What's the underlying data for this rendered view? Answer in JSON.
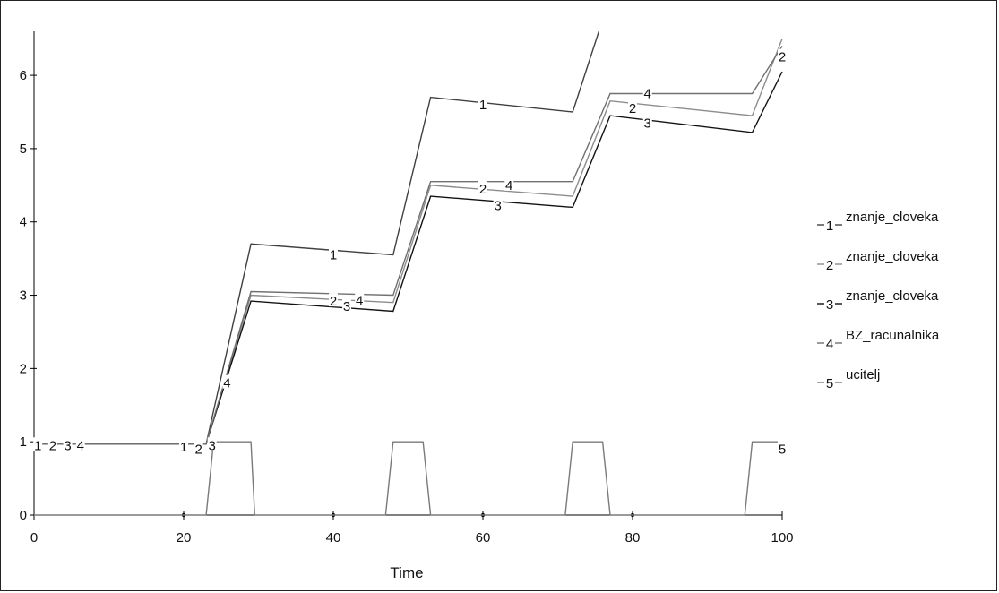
{
  "chart_data": {
    "type": "line",
    "xlabel": "Time",
    "ylabel": "",
    "xlim": [
      0,
      100
    ],
    "ylim": [
      0,
      6.6
    ],
    "x_ticks": [
      "0",
      "20",
      "40",
      "60",
      "80",
      "100"
    ],
    "y_ticks": [
      "0",
      "1",
      "2",
      "3",
      "4",
      "5",
      "6"
    ],
    "series": [
      {
        "name": "znanje_cloveka",
        "marker": "1",
        "color": "#404040",
        "points": [
          [
            0,
            0.97
          ],
          [
            23,
            0.97
          ],
          [
            29,
            3.7
          ],
          [
            48,
            3.55
          ],
          [
            53,
            5.7
          ],
          [
            72,
            5.5
          ],
          [
            75.5,
            6.6
          ]
        ]
      },
      {
        "name": "znanje_cloveka",
        "marker": "2",
        "color": "#8c8c8c",
        "points": [
          [
            0,
            0.97
          ],
          [
            23,
            0.97
          ],
          [
            29,
            3.0
          ],
          [
            48,
            2.9
          ],
          [
            53,
            4.5
          ],
          [
            72,
            4.35
          ],
          [
            77,
            5.65
          ],
          [
            96,
            5.45
          ],
          [
            100,
            6.5
          ]
        ]
      },
      {
        "name": "znanje_cloveka",
        "marker": "3",
        "color": "#111111",
        "points": [
          [
            0,
            0.97
          ],
          [
            23,
            0.97
          ],
          [
            29,
            2.92
          ],
          [
            48,
            2.78
          ],
          [
            53,
            4.35
          ],
          [
            72,
            4.2
          ],
          [
            77,
            5.45
          ],
          [
            96,
            5.22
          ],
          [
            100,
            6.05
          ]
        ]
      },
      {
        "name": "BZ_racunalnika",
        "marker": "4",
        "color": "#707070",
        "points": [
          [
            0,
            0.97
          ],
          [
            23,
            0.97
          ],
          [
            29,
            3.05
          ],
          [
            48,
            3.0
          ],
          [
            53,
            4.55
          ],
          [
            72,
            4.55
          ],
          [
            77,
            5.75
          ],
          [
            96,
            5.75
          ],
          [
            100,
            6.4
          ]
        ]
      },
      {
        "name": "ucitelj",
        "marker": "5",
        "color": "#7a7a7a",
        "points": [
          [
            0,
            0
          ],
          [
            23,
            0
          ],
          [
            24,
            1
          ],
          [
            29,
            1
          ],
          [
            29.5,
            0
          ],
          [
            47,
            0
          ],
          [
            48,
            1
          ],
          [
            52,
            1
          ],
          [
            53,
            0
          ],
          [
            71,
            0
          ],
          [
            72,
            1
          ],
          [
            76,
            1
          ],
          [
            77,
            0
          ],
          [
            95,
            0
          ],
          [
            96,
            1
          ],
          [
            100,
            1
          ]
        ]
      }
    ],
    "series_labels": [
      {
        "marker": "1",
        "x": 0.5,
        "y": 0.95
      },
      {
        "marker": "2",
        "x": 2.5,
        "y": 0.95
      },
      {
        "marker": "3",
        "x": 4.5,
        "y": 0.95
      },
      {
        "marker": "4",
        "x": 6.2,
        "y": 0.95
      },
      {
        "marker": "1",
        "x": 20,
        "y": 0.93
      },
      {
        "marker": "2",
        "x": 22,
        "y": 0.9
      },
      {
        "marker": "3",
        "x": 23.8,
        "y": 0.95
      },
      {
        "marker": "4",
        "x": 25.8,
        "y": 1.8
      },
      {
        "marker": "1",
        "x": 40,
        "y": 3.55
      },
      {
        "marker": "2",
        "x": 40,
        "y": 2.92
      },
      {
        "marker": "3",
        "x": 41.8,
        "y": 2.85
      },
      {
        "marker": "4",
        "x": 43.5,
        "y": 2.93
      },
      {
        "marker": "1",
        "x": 60,
        "y": 5.6
      },
      {
        "marker": "2",
        "x": 60,
        "y": 4.45
      },
      {
        "marker": "3",
        "x": 62,
        "y": 4.22
      },
      {
        "marker": "4",
        "x": 63.5,
        "y": 4.5
      },
      {
        "marker": "2",
        "x": 80,
        "y": 5.55
      },
      {
        "marker": "4",
        "x": 82,
        "y": 5.75
      },
      {
        "marker": "3",
        "x": 82,
        "y": 5.35
      },
      {
        "marker": "2",
        "x": 100,
        "y": 6.25
      },
      {
        "marker": "5",
        "x": 100,
        "y": 0.9
      }
    ],
    "legend_position": "right"
  }
}
